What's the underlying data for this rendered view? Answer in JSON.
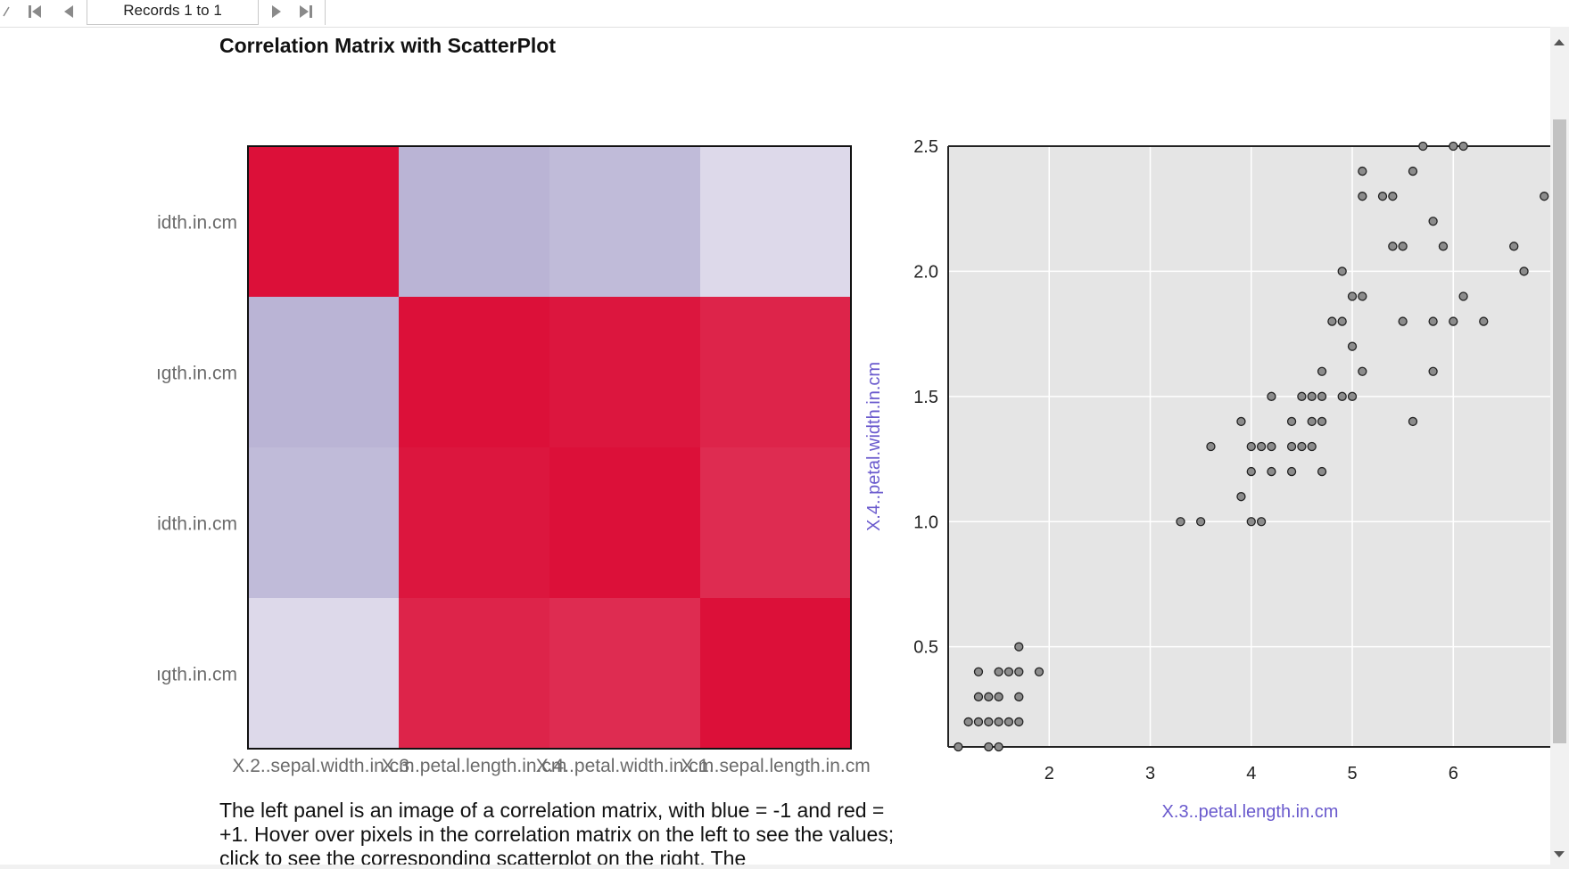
{
  "toolbar": {
    "records_label": "Records 1 to 1"
  },
  "title": "Correlation Matrix with ScatterPlot",
  "description": "The left panel is an image of a correlation matrix, with blue = -1 and red = +1. Hover over pixels in the correlation matrix on the left to see the values; click to see the corresponding scatterplot on the right. The",
  "colors": {
    "negative": "#e8e4ef",
    "positive": "#dc1039",
    "scatter_bg": "#e5e5e5",
    "axis_label": "#6a5acd",
    "point_fill": "#8c8c8c"
  },
  "icons": [
    "first-record-icon",
    "prev-record-icon",
    "next-record-icon",
    "last-record-icon"
  ],
  "chart_data": [
    {
      "type": "heatmap",
      "variables": [
        "X.2..sepal.width.in.cm",
        "X.3..petal.length.in.cm",
        "X.4..petal.width.in.cm",
        "X.1..sepal.length.in.cm"
      ],
      "row_labels_visible": [
        "idth.in.cm",
        "ıgth.in.cm",
        "idth.in.cm",
        "ıgth.in.cm"
      ],
      "matrix": [
        [
          1.0,
          -0.43,
          -0.37,
          -0.12
        ],
        [
          -0.43,
          1.0,
          0.96,
          0.87
        ],
        [
          -0.37,
          0.96,
          1.0,
          0.82
        ],
        [
          -0.12,
          0.87,
          0.82,
          1.0
        ]
      ],
      "scale": [
        -1,
        1
      ]
    },
    {
      "type": "scatter",
      "xlabel": "X.3..petal.length.in.cm",
      "ylabel": "X.4..petal.width.in.cm",
      "xlim": [
        1.0,
        6.96
      ],
      "ylim": [
        0.1,
        2.5
      ],
      "xticks": [
        "2",
        "3",
        "4",
        "5",
        "6"
      ],
      "yticks": [
        "2.5",
        "2.0",
        "1.5",
        "1.0",
        "0.5"
      ],
      "grid": true,
      "points": [
        [
          1.1,
          0.1
        ],
        [
          1.4,
          0.1
        ],
        [
          1.5,
          0.1
        ],
        [
          1.2,
          0.2
        ],
        [
          1.3,
          0.2
        ],
        [
          1.4,
          0.2
        ],
        [
          1.5,
          0.2
        ],
        [
          1.6,
          0.2
        ],
        [
          1.7,
          0.2
        ],
        [
          1.3,
          0.3
        ],
        [
          1.4,
          0.3
        ],
        [
          1.5,
          0.3
        ],
        [
          1.7,
          0.3
        ],
        [
          1.3,
          0.4
        ],
        [
          1.5,
          0.4
        ],
        [
          1.6,
          0.4
        ],
        [
          1.7,
          0.4
        ],
        [
          1.9,
          0.4
        ],
        [
          1.7,
          0.5
        ],
        [
          3.3,
          1.0
        ],
        [
          3.5,
          1.0
        ],
        [
          4.0,
          1.0
        ],
        [
          4.1,
          1.0
        ],
        [
          3.9,
          1.1
        ],
        [
          4.0,
          1.2
        ],
        [
          4.2,
          1.2
        ],
        [
          4.4,
          1.2
        ],
        [
          4.7,
          1.2
        ],
        [
          3.6,
          1.3
        ],
        [
          4.0,
          1.3
        ],
        [
          4.1,
          1.3
        ],
        [
          4.2,
          1.3
        ],
        [
          4.4,
          1.3
        ],
        [
          4.5,
          1.3
        ],
        [
          4.6,
          1.3
        ],
        [
          3.9,
          1.4
        ],
        [
          4.4,
          1.4
        ],
        [
          4.6,
          1.4
        ],
        [
          4.7,
          1.4
        ],
        [
          5.6,
          1.4
        ],
        [
          4.2,
          1.5
        ],
        [
          4.5,
          1.5
        ],
        [
          4.6,
          1.5
        ],
        [
          4.7,
          1.5
        ],
        [
          4.9,
          1.5
        ],
        [
          5.0,
          1.5
        ],
        [
          4.7,
          1.6
        ],
        [
          5.1,
          1.6
        ],
        [
          5.8,
          1.6
        ],
        [
          5.0,
          1.7
        ],
        [
          4.8,
          1.8
        ],
        [
          4.9,
          1.8
        ],
        [
          5.5,
          1.8
        ],
        [
          5.8,
          1.8
        ],
        [
          6.0,
          1.8
        ],
        [
          6.3,
          1.8
        ],
        [
          5.0,
          1.9
        ],
        [
          5.1,
          1.9
        ],
        [
          6.1,
          1.9
        ],
        [
          4.9,
          2.0
        ],
        [
          6.7,
          2.0
        ],
        [
          5.4,
          2.1
        ],
        [
          5.5,
          2.1
        ],
        [
          5.9,
          2.1
        ],
        [
          6.6,
          2.1
        ],
        [
          5.8,
          2.2
        ],
        [
          5.1,
          2.3
        ],
        [
          5.3,
          2.3
        ],
        [
          5.4,
          2.3
        ],
        [
          6.9,
          2.3
        ],
        [
          5.1,
          2.4
        ],
        [
          5.6,
          2.4
        ],
        [
          5.7,
          2.5
        ],
        [
          6.0,
          2.5
        ],
        [
          6.1,
          2.5
        ]
      ]
    }
  ]
}
